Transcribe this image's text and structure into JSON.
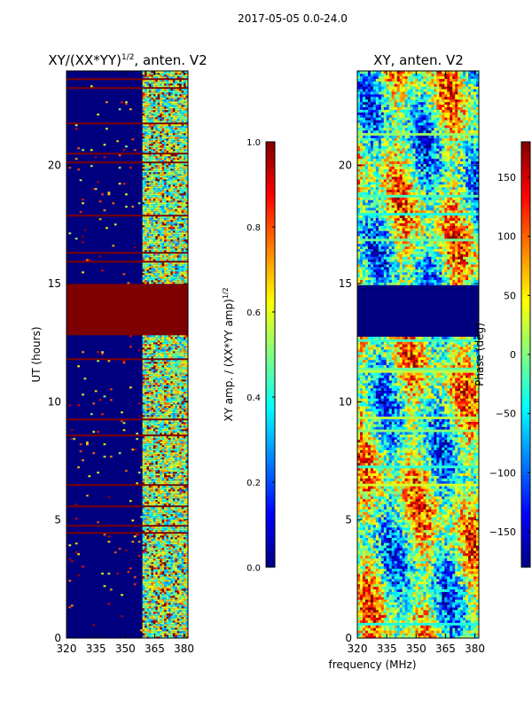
{
  "suptitle": "2017-05-05 0.0-24.0",
  "shared_xlabel": "frequency (MHz)",
  "colors": {
    "amp_high": "#7f0000",
    "amp_low": "#00007f",
    "colormap": "jet"
  },
  "chart_data": [
    {
      "type": "heatmap",
      "title": "XY/(XX*YY)",
      "title_exp": "1/2",
      "title_suffix": ", anten. V2",
      "xlabel": "",
      "ylabel": "UT (hours)",
      "xlim": [
        320,
        382
      ],
      "ylim": [
        0,
        24
      ],
      "xticks": [
        320,
        335,
        350,
        365,
        380
      ],
      "yticks": [
        0,
        5,
        10,
        15,
        20
      ],
      "active_band_mhz": [
        359,
        382
      ],
      "saturated_block_hours": [
        12.8,
        15.0
      ],
      "colorbar": {
        "label": "XY amp. / (XX*YY amp)",
        "label_exp": "1/2",
        "range": [
          0.0,
          1.0
        ],
        "ticks": [
          "0.0",
          "0.2",
          "0.4",
          "0.6",
          "0.8",
          "1.0"
        ]
      }
    },
    {
      "type": "heatmap",
      "title": "XY, anten. V2",
      "xlabel": "frequency (MHz)",
      "ylabel": "",
      "xlim": [
        320,
        382
      ],
      "ylim": [
        0,
        24
      ],
      "xticks": [
        320,
        335,
        350,
        365,
        380
      ],
      "yticks": [
        0,
        5,
        10,
        15,
        20
      ],
      "empty_block_hours": [
        12.8,
        15.0
      ],
      "colorbar": {
        "label": "Phase (deg)",
        "range": [
          -180,
          180
        ],
        "ticks": [
          "−150",
          "−100",
          "−50",
          "0",
          "50",
          "100",
          "150"
        ]
      }
    }
  ]
}
